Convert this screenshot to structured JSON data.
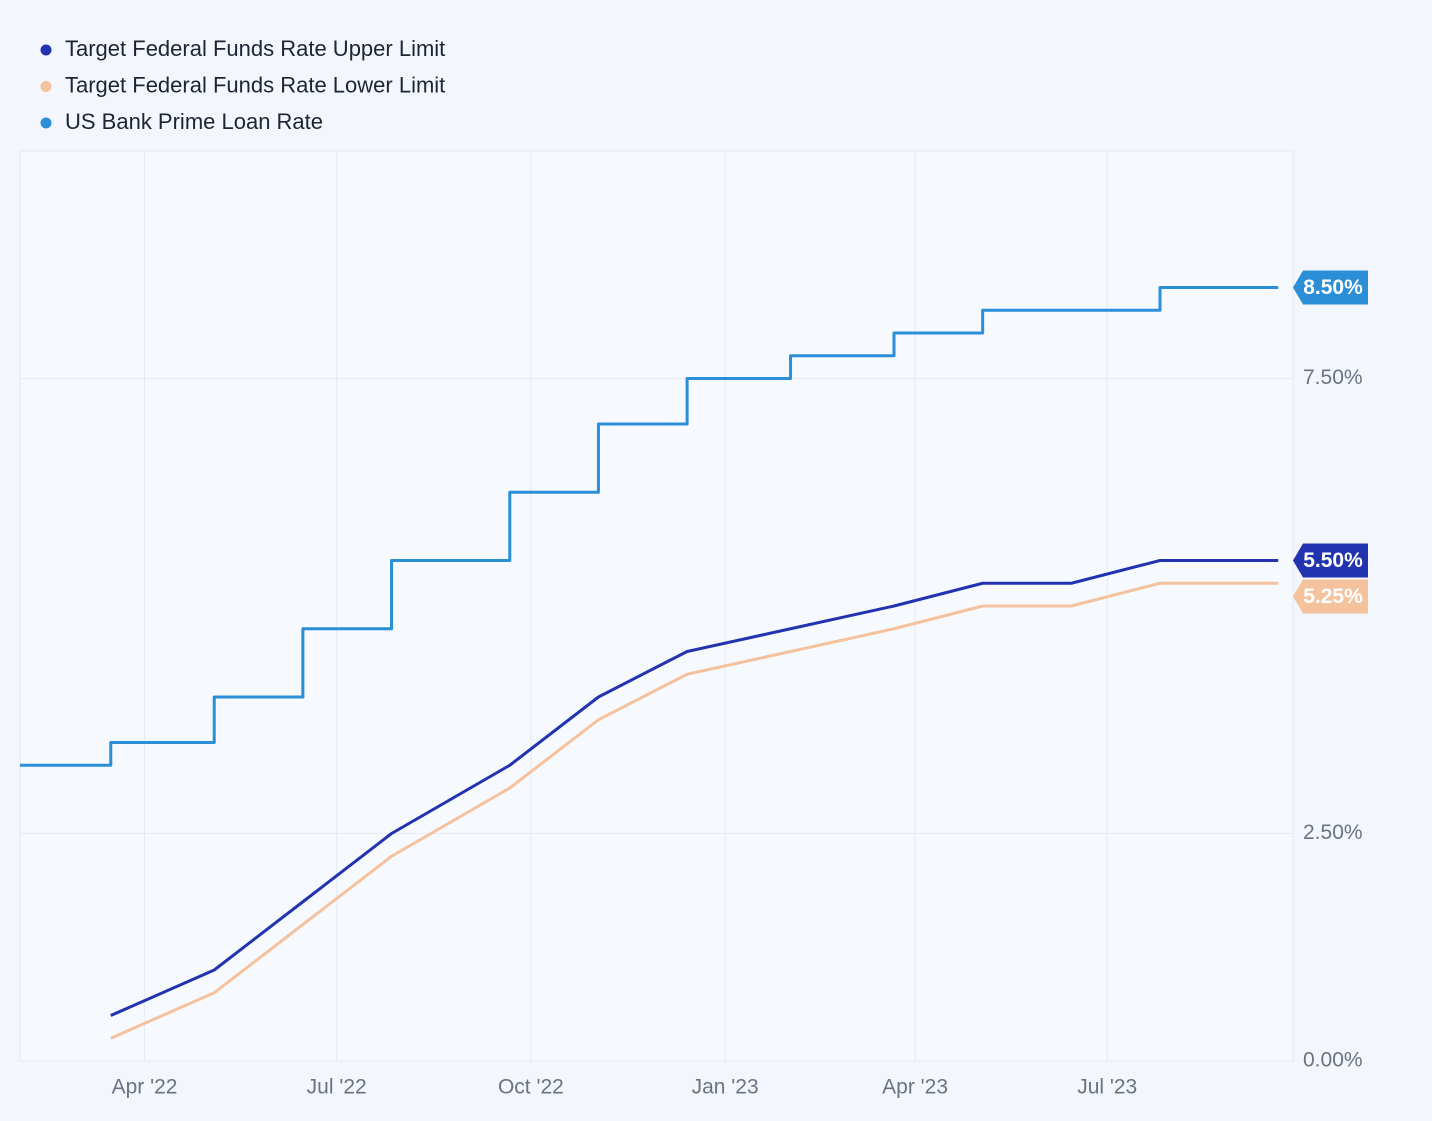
{
  "chart_data": {
    "type": "line",
    "x": [
      "2022-02-01",
      "2022-03-16",
      "2022-05-04",
      "2022-06-15",
      "2022-07-27",
      "2022-09-21",
      "2022-11-02",
      "2022-12-14",
      "2023-02-01",
      "2023-03-22",
      "2023-05-03",
      "2023-06-14",
      "2023-07-26",
      "2023-09-20"
    ],
    "series": [
      {
        "name": "Target Federal Funds Rate Upper Limit",
        "color": "#2233b0",
        "values": [
          null,
          0.5,
          1.0,
          1.75,
          2.5,
          3.25,
          4.0,
          4.5,
          4.75,
          5.0,
          5.25,
          5.25,
          5.5,
          5.5
        ],
        "end_label": "5.50%"
      },
      {
        "name": "Target Federal Funds Rate Lower Limit",
        "color": "#f5c29e",
        "values": [
          null,
          0.25,
          0.75,
          1.5,
          2.25,
          3.0,
          3.75,
          4.25,
          4.5,
          4.75,
          5.0,
          5.0,
          5.25,
          5.25
        ],
        "end_label": "5.25%"
      },
      {
        "name": "US Bank Prime Loan Rate",
        "color": "#2a8fd6",
        "step": true,
        "values": [
          3.25,
          3.5,
          4.0,
          4.75,
          5.5,
          6.25,
          7.0,
          7.5,
          7.75,
          8.0,
          8.25,
          8.25,
          8.5,
          8.5
        ],
        "end_label": "8.50%"
      }
    ],
    "xlim": [
      "2022-02-01",
      "2023-09-27"
    ],
    "xticks": [
      {
        "value": "2022-04-01",
        "label": "Apr '22"
      },
      {
        "value": "2022-07-01",
        "label": "Jul '22"
      },
      {
        "value": "2022-10-01",
        "label": "Oct '22"
      },
      {
        "value": "2023-01-01",
        "label": "Jan '23"
      },
      {
        "value": "2023-04-01",
        "label": "Apr '23"
      },
      {
        "value": "2023-07-01",
        "label": "Jul '23"
      }
    ],
    "ylim": [
      0,
      10
    ],
    "yticks": [
      {
        "value": 0,
        "label": "0.00%"
      },
      {
        "value": 2.5,
        "label": "2.50%"
      },
      {
        "value": 7.5,
        "label": "7.50%"
      }
    ],
    "grid": true,
    "legend": "top-left"
  }
}
